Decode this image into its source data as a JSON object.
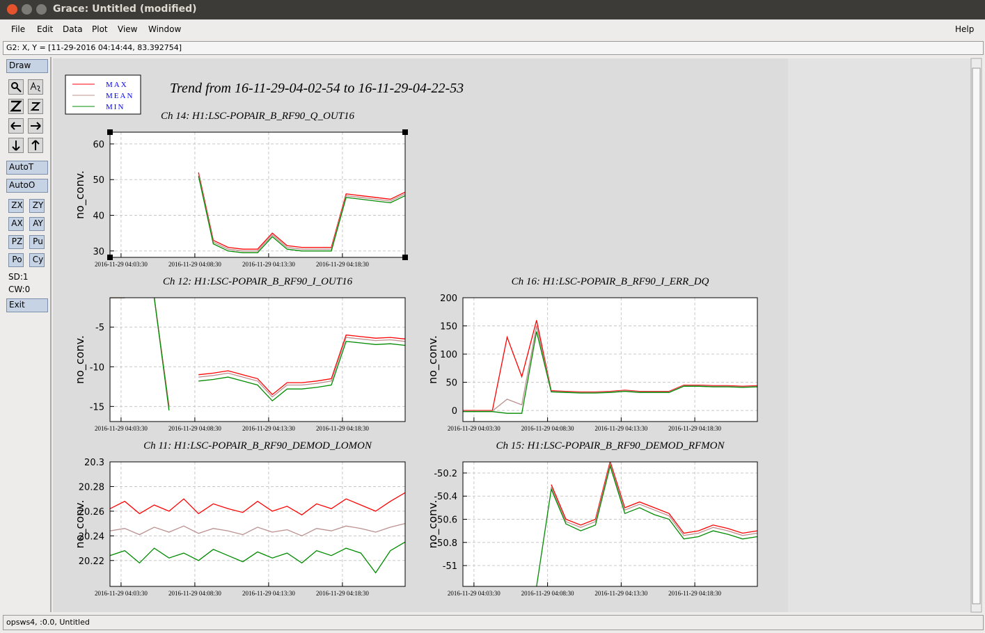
{
  "window": {
    "title": "Grace: Untitled (modified)"
  },
  "menu": [
    "File",
    "Edit",
    "Data",
    "Plot",
    "View",
    "Window"
  ],
  "help": "Help",
  "locator": "G2: X, Y = [11-29-2016 04:14:44, 83.392754]",
  "toolbar": {
    "draw": "Draw",
    "auto": [
      "AutoT",
      "AutoO"
    ],
    "pairs": [
      [
        "ZX",
        "ZY"
      ],
      [
        "AX",
        "AY"
      ],
      [
        "PZ",
        "Pu"
      ],
      [
        "Po",
        "Cy"
      ]
    ],
    "sd": "SD:1",
    "cw": "CW:0",
    "exit": "Exit"
  },
  "status": "opsws4, :0.0, Untitled",
  "main_title": "Trend from 16-11-29-04-02-54 to 16-11-29-04-22-53",
  "legend": [
    {
      "name": "MAX",
      "color": "#ff0000"
    },
    {
      "name": "MEAN",
      "color": "#bc8f8f"
    },
    {
      "name": "MIN",
      "color": "#008b00"
    }
  ],
  "chart_data": [
    {
      "type": "line",
      "title": "Ch 14: H1:LSC-POPAIR_B_RF90_Q_OUT16",
      "ylabel": "no_conv.",
      "x": [
        "2016-11-29 04:02:45",
        "2016-11-29 04:03:45",
        "2016-11-29 04:04:45",
        "2016-11-29 04:05:45",
        "2016-11-29 04:06:45",
        "2016-11-29 04:07:45",
        "2016-11-29 04:08:45",
        "2016-11-29 04:09:45",
        "2016-11-29 04:10:45",
        "2016-11-29 04:11:45",
        "2016-11-29 04:12:45",
        "2016-11-29 04:13:45",
        "2016-11-29 04:14:45",
        "2016-11-29 04:15:45",
        "2016-11-29 04:16:45",
        "2016-11-29 04:17:45",
        "2016-11-29 04:18:45",
        "2016-11-29 04:19:45",
        "2016-11-29 04:20:45",
        "2016-11-29 04:21:45",
        "2016-11-29 04:22:45"
      ],
      "xlim": [
        "2016-11-29 04:02:45",
        "2016-11-29 04:22:45"
      ],
      "xticks": [
        "2016-11-29 04:03:30",
        "2016-11-29 04:08:30",
        "2016-11-29 04:13:30",
        "2016-11-29 04:18:30"
      ],
      "ylim": [
        28.2,
        63.3
      ],
      "yticks": [
        30,
        40,
        50,
        60
      ],
      "grid": true,
      "series": [
        {
          "color": "#ff0000",
          "values": [
            null,
            null,
            null,
            null,
            null,
            null,
            52,
            33,
            31,
            30.5,
            30.5,
            35,
            31.5,
            31,
            31,
            31,
            46,
            45.5,
            45,
            44.5,
            46.5
          ]
        },
        {
          "color": "#bc8f8f",
          "values": [
            null,
            null,
            null,
            null,
            null,
            null,
            51.5,
            32.5,
            30.5,
            30,
            30,
            34.5,
            31,
            30.5,
            30.5,
            30.5,
            45.5,
            45,
            44.5,
            44,
            46
          ]
        },
        {
          "color": "#008b00",
          "values": [
            null,
            null,
            null,
            null,
            null,
            null,
            51,
            32,
            30,
            29.5,
            29.5,
            34,
            30.5,
            30,
            30,
            30,
            45,
            44.5,
            44,
            43.5,
            45.5
          ]
        }
      ]
    },
    {
      "type": "line",
      "title": "Ch 12: H1:LSC-POPAIR_B_RF90_I_OUT16",
      "ylabel": "no_conv.",
      "x": [
        "2016-11-29 04:02:45",
        "2016-11-29 04:03:45",
        "2016-11-29 04:04:45",
        "2016-11-29 04:05:45",
        "2016-11-29 04:06:45",
        "2016-11-29 04:07:45",
        "2016-11-29 04:08:45",
        "2016-11-29 04:09:45",
        "2016-11-29 04:10:45",
        "2016-11-29 04:11:45",
        "2016-11-29 04:12:45",
        "2016-11-29 04:13:45",
        "2016-11-29 04:14:45",
        "2016-11-29 04:15:45",
        "2016-11-29 04:16:45",
        "2016-11-29 04:17:45",
        "2016-11-29 04:18:45",
        "2016-11-29 04:19:45",
        "2016-11-29 04:20:45",
        "2016-11-29 04:21:45",
        "2016-11-29 04:22:45"
      ],
      "xlim": [
        "2016-11-29 04:02:45",
        "2016-11-29 04:22:45"
      ],
      "xticks": [
        "2016-11-29 04:03:30",
        "2016-11-29 04:08:30",
        "2016-11-29 04:13:30",
        "2016-11-29 04:18:30"
      ],
      "ylim": [
        -16.9,
        -1.3
      ],
      "yticks": [
        -15,
        -10,
        -5
      ],
      "grid": true,
      "series": [
        {
          "color": "#ff0000",
          "values": [
            -1.3,
            -1.3,
            null,
            -1.3,
            -15,
            null,
            -11,
            -10.8,
            -10.5,
            -11,
            -11.5,
            -13.5,
            -12,
            -12,
            -11.8,
            -11.5,
            -6,
            -6.2,
            -6.4,
            -6.3,
            -6.5
          ]
        },
        {
          "color": "#bc8f8f",
          "values": [
            -1.3,
            -1.3,
            null,
            -1.3,
            -15.2,
            null,
            -11.3,
            -11.1,
            -10.8,
            -11.3,
            -11.8,
            -13.8,
            -12.3,
            -12.3,
            -12.1,
            -11.8,
            -6.3,
            -6.5,
            -6.7,
            -6.6,
            -6.8
          ]
        },
        {
          "color": "#008b00",
          "values": [
            -1.3,
            -1.3,
            null,
            -1.3,
            -15.5,
            null,
            -11.8,
            -11.6,
            -11.3,
            -11.8,
            -12.3,
            -14.3,
            -12.8,
            -12.8,
            -12.6,
            -12.3,
            -6.8,
            -7,
            -7.2,
            -7.1,
            -7.3
          ]
        }
      ]
    },
    {
      "type": "line",
      "title": "Ch 16: H1:LSC-POPAIR_B_RF90_I_ERR_DQ",
      "ylabel": "no_conv.",
      "x": [
        "2016-11-29 04:02:45",
        "2016-11-29 04:03:45",
        "2016-11-29 04:04:45",
        "2016-11-29 04:05:45",
        "2016-11-29 04:06:45",
        "2016-11-29 04:07:45",
        "2016-11-29 04:08:45",
        "2016-11-29 04:09:45",
        "2016-11-29 04:10:45",
        "2016-11-29 04:11:45",
        "2016-11-29 04:12:45",
        "2016-11-29 04:13:45",
        "2016-11-29 04:14:45",
        "2016-11-29 04:15:45",
        "2016-11-29 04:16:45",
        "2016-11-29 04:17:45",
        "2016-11-29 04:18:45",
        "2016-11-29 04:19:45",
        "2016-11-29 04:20:45",
        "2016-11-29 04:21:45",
        "2016-11-29 04:22:45"
      ],
      "xlim": [
        "2016-11-29 04:02:45",
        "2016-11-29 04:22:45"
      ],
      "xticks": [
        "2016-11-29 04:03:30",
        "2016-11-29 04:08:30",
        "2016-11-29 04:13:30",
        "2016-11-29 04:18:30"
      ],
      "ylim": [
        -19.6,
        200
      ],
      "yticks": [
        0,
        50,
        100,
        150,
        200
      ],
      "grid": true,
      "series": [
        {
          "color": "#ff0000",
          "values": [
            0,
            0,
            0,
            130,
            60,
            160,
            35,
            34,
            33,
            33,
            34,
            36,
            34,
            34,
            34,
            45,
            45,
            44,
            44,
            43,
            44
          ]
        },
        {
          "color": "#bc8f8f",
          "values": [
            -1,
            -1,
            -1,
            20,
            10,
            150,
            34,
            33,
            32,
            32,
            33,
            35,
            33,
            33,
            33,
            44,
            44,
            43,
            43,
            42,
            43
          ]
        },
        {
          "color": "#008b00",
          "values": [
            -2,
            -2,
            -2,
            -5,
            -5,
            140,
            33,
            32,
            31,
            31,
            32,
            34,
            32,
            32,
            32,
            43,
            43,
            42,
            42,
            41,
            42
          ]
        }
      ]
    },
    {
      "type": "line",
      "title": "Ch 11: H1:LSC-POPAIR_B_RF90_DEMOD_LOMON",
      "ylabel": "no_conv.",
      "x": [
        "2016-11-29 04:02:45",
        "2016-11-29 04:03:45",
        "2016-11-29 04:04:45",
        "2016-11-29 04:05:45",
        "2016-11-29 04:06:45",
        "2016-11-29 04:07:45",
        "2016-11-29 04:08:45",
        "2016-11-29 04:09:45",
        "2016-11-29 04:10:45",
        "2016-11-29 04:11:45",
        "2016-11-29 04:12:45",
        "2016-11-29 04:13:45",
        "2016-11-29 04:14:45",
        "2016-11-29 04:15:45",
        "2016-11-29 04:16:45",
        "2016-11-29 04:17:45",
        "2016-11-29 04:18:45",
        "2016-11-29 04:19:45",
        "2016-11-29 04:20:45",
        "2016-11-29 04:21:45",
        "2016-11-29 04:22:45"
      ],
      "xlim": [
        "2016-11-29 04:02:45",
        "2016-11-29 04:22:45"
      ],
      "xticks": [
        "2016-11-29 04:03:30",
        "2016-11-29 04:08:30",
        "2016-11-29 04:13:30",
        "2016-11-29 04:18:30"
      ],
      "ylim": [
        20.199,
        20.3
      ],
      "yticks": [
        20.22,
        20.24,
        20.26,
        20.28,
        20.3
      ],
      "grid": true,
      "series": [
        {
          "color": "#ff0000",
          "values": [
            20.262,
            20.268,
            20.258,
            20.265,
            20.26,
            20.27,
            20.258,
            20.266,
            20.262,
            20.259,
            20.268,
            20.26,
            20.264,
            20.257,
            20.266,
            20.262,
            20.27,
            20.265,
            20.26,
            20.268,
            20.275
          ]
        },
        {
          "color": "#bc8f8f",
          "values": [
            20.244,
            20.246,
            20.241,
            20.247,
            20.243,
            20.248,
            20.242,
            20.246,
            20.244,
            20.241,
            20.247,
            20.243,
            20.245,
            20.24,
            20.246,
            20.244,
            20.248,
            20.246,
            20.243,
            20.247,
            20.25
          ]
        },
        {
          "color": "#008b00",
          "values": [
            20.224,
            20.228,
            20.218,
            20.23,
            20.222,
            20.226,
            20.22,
            20.229,
            20.224,
            20.219,
            20.227,
            20.222,
            20.226,
            20.218,
            20.228,
            20.224,
            20.23,
            20.226,
            20.21,
            20.228,
            20.235
          ]
        }
      ]
    },
    {
      "type": "line",
      "title": "Ch 15: H1:LSC-POPAIR_B_RF90_DEMOD_RFMON",
      "ylabel": "no_conv.",
      "x": [
        "2016-11-29 04:02:45",
        "2016-11-29 04:03:45",
        "2016-11-29 04:04:45",
        "2016-11-29 04:05:45",
        "2016-11-29 04:06:45",
        "2016-11-29 04:07:45",
        "2016-11-29 04:08:45",
        "2016-11-29 04:09:45",
        "2016-11-29 04:10:45",
        "2016-11-29 04:11:45",
        "2016-11-29 04:12:45",
        "2016-11-29 04:13:45",
        "2016-11-29 04:14:45",
        "2016-11-29 04:15:45",
        "2016-11-29 04:16:45",
        "2016-11-29 04:17:45",
        "2016-11-29 04:18:45",
        "2016-11-29 04:19:45",
        "2016-11-29 04:20:45",
        "2016-11-29 04:21:45",
        "2016-11-29 04:22:45"
      ],
      "xlim": [
        "2016-11-29 04:02:45",
        "2016-11-29 04:22:45"
      ],
      "xticks": [
        "2016-11-29 04:03:30",
        "2016-11-29 04:08:30",
        "2016-11-29 04:13:30",
        "2016-11-29 04:18:30"
      ],
      "ylim": [
        -51.18,
        -50.104
      ],
      "yticks": [
        -51,
        -50.8,
        -50.6,
        -50.4,
        -50.2
      ],
      "grid": true,
      "series": [
        {
          "color": "#ff0000",
          "values": [
            null,
            null,
            null,
            null,
            -51.18,
            null,
            -50.3,
            -50.6,
            -50.65,
            -50.6,
            -50.1,
            -50.5,
            -50.45,
            -50.5,
            -50.55,
            -50.72,
            -50.7,
            -50.65,
            -50.68,
            -50.72,
            -50.7
          ]
        },
        {
          "color": "#bc8f8f",
          "values": [
            null,
            null,
            null,
            null,
            null,
            null,
            -50.32,
            -50.62,
            -50.67,
            -50.62,
            -50.12,
            -50.52,
            -50.47,
            -50.52,
            -50.57,
            -50.74,
            -50.72,
            -50.67,
            -50.7,
            -50.74,
            -50.72
          ]
        },
        {
          "color": "#008b00",
          "values": [
            null,
            null,
            null,
            null,
            null,
            -51.18,
            -50.34,
            -50.64,
            -50.7,
            -50.65,
            -50.14,
            -50.55,
            -50.5,
            -50.56,
            -50.6,
            -50.77,
            -50.75,
            -50.7,
            -50.73,
            -50.77,
            -50.75
          ]
        }
      ]
    }
  ]
}
